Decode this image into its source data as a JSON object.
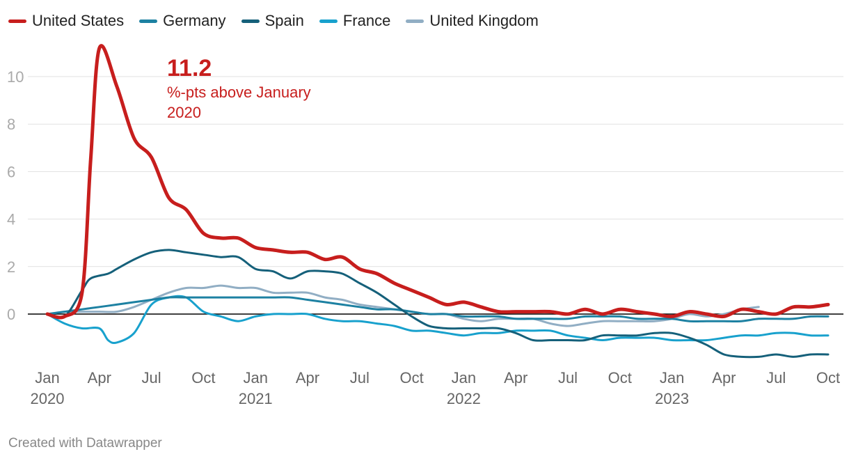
{
  "chart_data": {
    "type": "line",
    "title": "",
    "xlabel": "",
    "ylabel": "",
    "ylim": [
      -2.2,
      11.3
    ],
    "y_ticks": [
      0,
      2,
      4,
      6,
      8,
      10
    ],
    "x_range": [
      0,
      45
    ],
    "x_ticks": [
      {
        "month": 0,
        "label": "Jan",
        "year": "2020"
      },
      {
        "month": 3,
        "label": "Apr",
        "year": ""
      },
      {
        "month": 6,
        "label": "Jul",
        "year": ""
      },
      {
        "month": 9,
        "label": "Oct",
        "year": ""
      },
      {
        "month": 12,
        "label": "Jan",
        "year": "2021"
      },
      {
        "month": 15,
        "label": "Apr",
        "year": ""
      },
      {
        "month": 18,
        "label": "Jul",
        "year": ""
      },
      {
        "month": 21,
        "label": "Oct",
        "year": ""
      },
      {
        "month": 24,
        "label": "Jan",
        "year": "2022"
      },
      {
        "month": 27,
        "label": "Apr",
        "year": ""
      },
      {
        "month": 30,
        "label": "Jul",
        "year": ""
      },
      {
        "month": 33,
        "label": "Oct",
        "year": ""
      },
      {
        "month": 36,
        "label": "Jan",
        "year": "2023"
      },
      {
        "month": 39,
        "label": "Apr",
        "year": ""
      },
      {
        "month": 42,
        "label": "Jul",
        "year": ""
      },
      {
        "month": 45,
        "label": "Oct",
        "year": ""
      }
    ],
    "series": [
      {
        "name": "United States",
        "color": "#c71e1d",
        "width": 5,
        "points": [
          [
            0,
            0
          ],
          [
            1,
            -0.1
          ],
          [
            2,
            0.9
          ],
          [
            2.5,
            6.5
          ],
          [
            3,
            11.2
          ],
          [
            4,
            9.6
          ],
          [
            5,
            7.4
          ],
          [
            6,
            6.6
          ],
          [
            7,
            4.9
          ],
          [
            8,
            4.4
          ],
          [
            9,
            3.4
          ],
          [
            10,
            3.2
          ],
          [
            11,
            3.2
          ],
          [
            12,
            2.8
          ],
          [
            13,
            2.7
          ],
          [
            14,
            2.6
          ],
          [
            15,
            2.6
          ],
          [
            16,
            2.3
          ],
          [
            17,
            2.4
          ],
          [
            18,
            1.9
          ],
          [
            19,
            1.7
          ],
          [
            20,
            1.3
          ],
          [
            21,
            1.0
          ],
          [
            22,
            0.7
          ],
          [
            23,
            0.4
          ],
          [
            24,
            0.5
          ],
          [
            25,
            0.3
          ],
          [
            26,
            0.1
          ],
          [
            27,
            0.1
          ],
          [
            28,
            0.1
          ],
          [
            29,
            0.1
          ],
          [
            30,
            0.0
          ],
          [
            31,
            0.2
          ],
          [
            32,
            0.0
          ],
          [
            33,
            0.2
          ],
          [
            34,
            0.1
          ],
          [
            35,
            0.0
          ],
          [
            36,
            -0.1
          ],
          [
            37,
            0.1
          ],
          [
            38,
            0.0
          ],
          [
            39,
            -0.1
          ],
          [
            40,
            0.2
          ],
          [
            41,
            0.1
          ],
          [
            42,
            0.0
          ],
          [
            43,
            0.3
          ],
          [
            44,
            0.3
          ],
          [
            45,
            0.4
          ]
        ]
      },
      {
        "name": "Germany",
        "color": "#1d81a2",
        "width": 3,
        "points": [
          [
            0,
            0
          ],
          [
            1,
            0.1
          ],
          [
            2,
            0.2
          ],
          [
            3,
            0.3
          ],
          [
            4,
            0.4
          ],
          [
            5,
            0.5
          ],
          [
            6,
            0.6
          ],
          [
            7,
            0.7
          ],
          [
            8,
            0.7
          ],
          [
            9,
            0.7
          ],
          [
            10,
            0.7
          ],
          [
            11,
            0.7
          ],
          [
            12,
            0.7
          ],
          [
            13,
            0.7
          ],
          [
            14,
            0.7
          ],
          [
            15,
            0.6
          ],
          [
            16,
            0.5
          ],
          [
            17,
            0.4
          ],
          [
            18,
            0.3
          ],
          [
            19,
            0.2
          ],
          [
            20,
            0.2
          ],
          [
            21,
            0.1
          ],
          [
            22,
            0.0
          ],
          [
            23,
            0.0
          ],
          [
            24,
            -0.1
          ],
          [
            25,
            -0.1
          ],
          [
            26,
            -0.1
          ],
          [
            27,
            -0.2
          ],
          [
            28,
            -0.2
          ],
          [
            29,
            -0.2
          ],
          [
            30,
            -0.2
          ],
          [
            31,
            -0.1
          ],
          [
            32,
            -0.1
          ],
          [
            33,
            -0.1
          ],
          [
            34,
            -0.2
          ],
          [
            35,
            -0.2
          ],
          [
            36,
            -0.2
          ],
          [
            37,
            -0.3
          ],
          [
            38,
            -0.3
          ],
          [
            39,
            -0.3
          ],
          [
            40,
            -0.3
          ],
          [
            41,
            -0.2
          ],
          [
            42,
            -0.2
          ],
          [
            43,
            -0.2
          ],
          [
            44,
            -0.1
          ],
          [
            45,
            -0.1
          ]
        ]
      },
      {
        "name": "Spain",
        "color": "#15607a",
        "width": 3,
        "points": [
          [
            0,
            0
          ],
          [
            1,
            -0.1
          ],
          [
            2,
            1.0
          ],
          [
            2.5,
            1.5
          ],
          [
            3.5,
            1.7
          ],
          [
            4,
            1.9
          ],
          [
            5,
            2.3
          ],
          [
            6,
            2.6
          ],
          [
            7,
            2.7
          ],
          [
            8,
            2.6
          ],
          [
            9,
            2.5
          ],
          [
            10,
            2.4
          ],
          [
            11,
            2.4
          ],
          [
            12,
            1.9
          ],
          [
            13,
            1.8
          ],
          [
            14,
            1.5
          ],
          [
            15,
            1.8
          ],
          [
            16,
            1.8
          ],
          [
            17,
            1.7
          ],
          [
            18,
            1.3
          ],
          [
            19,
            0.9
          ],
          [
            20,
            0.4
          ],
          [
            21,
            -0.1
          ],
          [
            22,
            -0.5
          ],
          [
            23,
            -0.6
          ],
          [
            24,
            -0.6
          ],
          [
            25,
            -0.6
          ],
          [
            26,
            -0.6
          ],
          [
            27,
            -0.8
          ],
          [
            28,
            -1.1
          ],
          [
            29,
            -1.1
          ],
          [
            30,
            -1.1
          ],
          [
            31,
            -1.1
          ],
          [
            32,
            -0.9
          ],
          [
            33,
            -0.9
          ],
          [
            34,
            -0.9
          ],
          [
            35,
            -0.8
          ],
          [
            36,
            -0.8
          ],
          [
            37,
            -1.0
          ],
          [
            38,
            -1.3
          ],
          [
            39,
            -1.7
          ],
          [
            40,
            -1.8
          ],
          [
            41,
            -1.8
          ],
          [
            42,
            -1.7
          ],
          [
            43,
            -1.8
          ],
          [
            44,
            -1.7
          ],
          [
            45,
            -1.7
          ]
        ]
      },
      {
        "name": "France",
        "color": "#18a1cd",
        "width": 3,
        "points": [
          [
            0,
            0
          ],
          [
            1,
            -0.4
          ],
          [
            2,
            -0.6
          ],
          [
            3,
            -0.6
          ],
          [
            3.5,
            -1.1
          ],
          [
            4,
            -1.2
          ],
          [
            5,
            -0.8
          ],
          [
            6,
            0.4
          ],
          [
            7,
            0.7
          ],
          [
            8,
            0.7
          ],
          [
            9,
            0.1
          ],
          [
            10,
            -0.1
          ],
          [
            11,
            -0.3
          ],
          [
            12,
            -0.1
          ],
          [
            13,
            0.0
          ],
          [
            14,
            0.0
          ],
          [
            15,
            0.0
          ],
          [
            16,
            -0.2
          ],
          [
            17,
            -0.3
          ],
          [
            18,
            -0.3
          ],
          [
            19,
            -0.4
          ],
          [
            20,
            -0.5
          ],
          [
            21,
            -0.7
          ],
          [
            22,
            -0.7
          ],
          [
            23,
            -0.8
          ],
          [
            24,
            -0.9
          ],
          [
            25,
            -0.8
          ],
          [
            26,
            -0.8
          ],
          [
            27,
            -0.7
          ],
          [
            28,
            -0.7
          ],
          [
            29,
            -0.7
          ],
          [
            30,
            -0.9
          ],
          [
            31,
            -1.0
          ],
          [
            32,
            -1.1
          ],
          [
            33,
            -1.0
          ],
          [
            34,
            -1.0
          ],
          [
            35,
            -1.0
          ],
          [
            36,
            -1.1
          ],
          [
            37,
            -1.1
          ],
          [
            38,
            -1.1
          ],
          [
            39,
            -1.0
          ],
          [
            40,
            -0.9
          ],
          [
            41,
            -0.9
          ],
          [
            42,
            -0.8
          ],
          [
            43,
            -0.8
          ],
          [
            44,
            -0.9
          ],
          [
            45,
            -0.9
          ]
        ]
      },
      {
        "name": "United Kingdom",
        "color": "#91aec4",
        "width": 3,
        "points": [
          [
            0,
            0
          ],
          [
            1,
            0.1
          ],
          [
            2,
            0.1
          ],
          [
            3,
            0.1
          ],
          [
            4,
            0.1
          ],
          [
            5,
            0.3
          ],
          [
            6,
            0.6
          ],
          [
            7,
            0.9
          ],
          [
            8,
            1.1
          ],
          [
            9,
            1.1
          ],
          [
            10,
            1.2
          ],
          [
            11,
            1.1
          ],
          [
            12,
            1.1
          ],
          [
            13,
            0.9
          ],
          [
            14,
            0.9
          ],
          [
            15,
            0.9
          ],
          [
            16,
            0.7
          ],
          [
            17,
            0.6
          ],
          [
            18,
            0.4
          ],
          [
            19,
            0.3
          ],
          [
            20,
            0.2
          ],
          [
            21,
            0.1
          ],
          [
            22,
            0.0
          ],
          [
            23,
            0.0
          ],
          [
            24,
            -0.2
          ],
          [
            25,
            -0.3
          ],
          [
            26,
            -0.2
          ],
          [
            27,
            -0.2
          ],
          [
            28,
            -0.2
          ],
          [
            29,
            -0.4
          ],
          [
            30,
            -0.5
          ],
          [
            31,
            -0.4
          ],
          [
            32,
            -0.3
          ],
          [
            33,
            -0.3
          ],
          [
            34,
            -0.3
          ],
          [
            35,
            -0.3
          ],
          [
            36,
            -0.2
          ],
          [
            37,
            0.0
          ],
          [
            38,
            -0.1
          ],
          [
            39,
            0.0
          ],
          [
            40,
            0.2
          ],
          [
            41,
            0.3
          ]
        ]
      }
    ],
    "annotations": [
      {
        "value": "11.2",
        "text": "%-pts above January 2020",
        "color": "#c71e1d"
      }
    ]
  },
  "legend": {
    "items": [
      {
        "label": "United States",
        "color": "#c71e1d"
      },
      {
        "label": "Germany",
        "color": "#1d81a2"
      },
      {
        "label": "Spain",
        "color": "#15607a"
      },
      {
        "label": "France",
        "color": "#18a1cd"
      },
      {
        "label": "United Kingdom",
        "color": "#91aec4"
      }
    ]
  },
  "annotation": {
    "value": "11.2",
    "text": "%-pts above January 2020"
  },
  "footer": {
    "text": "Created with Datawrapper"
  }
}
